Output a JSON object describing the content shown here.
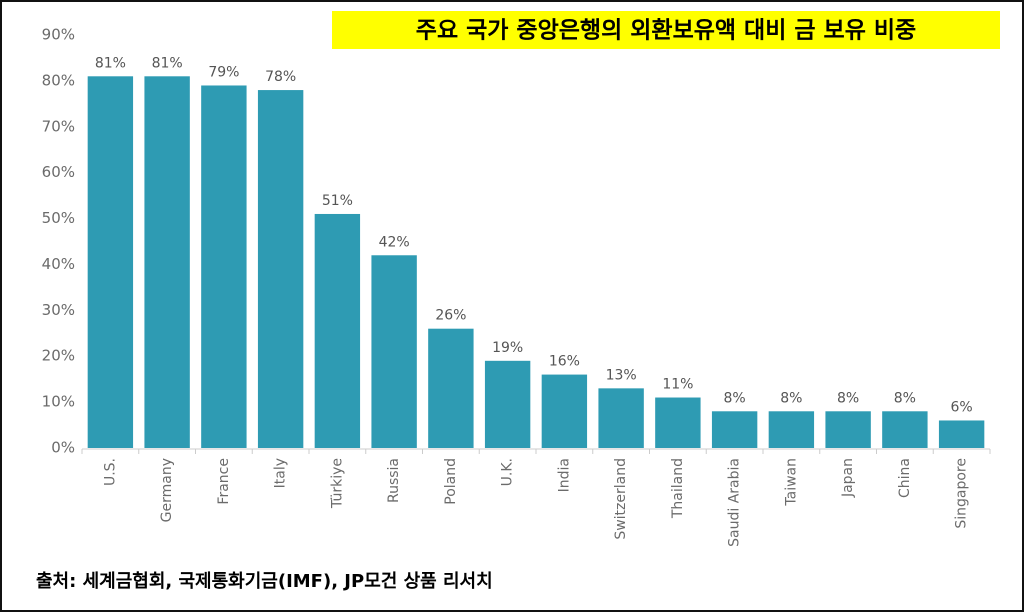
{
  "chart_data": {
    "type": "bar",
    "title": "주요 국가 중앙은행의 외환보유액 대비 금 보유 비중",
    "source": "출처: 세계금협회, 국제통화기금(IMF), JP모건 상품 리서치",
    "categories": [
      "U.S.",
      "Germany",
      "France",
      "Italy",
      "Türkiye",
      "Russia",
      "Poland",
      "U.K.",
      "India",
      "Switzerland",
      "Thailand",
      "Saudi Arabia",
      "Taiwan",
      "Japan",
      "China",
      "Singapore"
    ],
    "values": [
      81,
      81,
      79,
      78,
      51,
      42,
      26,
      19,
      16,
      13,
      11,
      8,
      8,
      8,
      8,
      6
    ],
    "value_labels": [
      "81%",
      "81%",
      "79%",
      "78%",
      "51%",
      "42%",
      "26%",
      "19%",
      "16%",
      "13%",
      "11%",
      "8%",
      "8%",
      "8%",
      "8%",
      "6%"
    ],
    "color": "#2e9bb3",
    "ylim": [
      0,
      90
    ],
    "yticks": [
      {
        "value": 0,
        "label": "0%"
      },
      {
        "value": 10,
        "label": "10%"
      },
      {
        "value": 20,
        "label": "20%"
      },
      {
        "value": 30,
        "label": "30%"
      },
      {
        "value": 40,
        "label": "40%"
      },
      {
        "value": 50,
        "label": "50%"
      },
      {
        "value": 60,
        "label": "60%"
      },
      {
        "value": 70,
        "label": "70%"
      },
      {
        "value": 80,
        "label": "80%"
      },
      {
        "value": 90,
        "label": "90%"
      }
    ],
    "grid": false
  }
}
